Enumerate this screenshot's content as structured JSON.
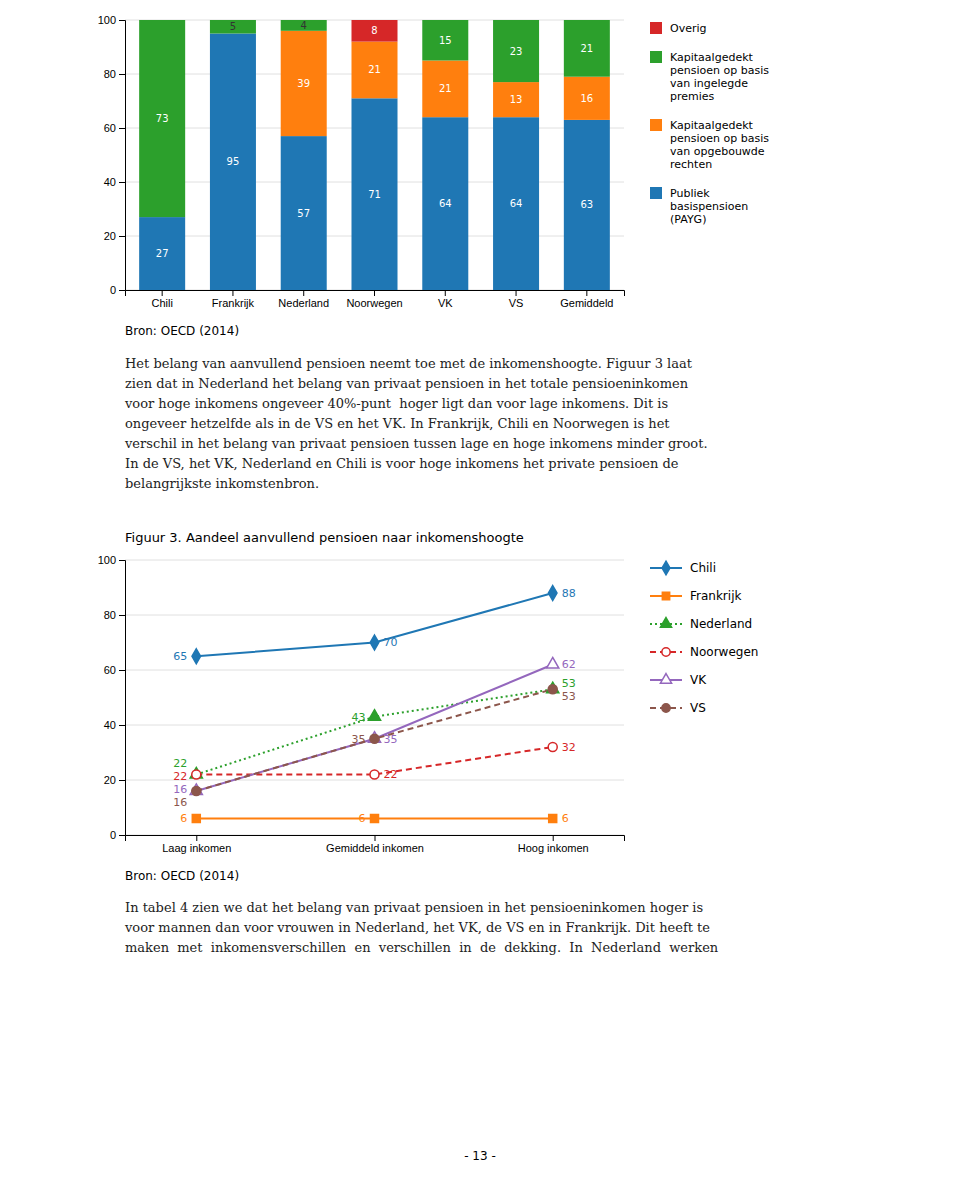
{
  "chart_data": [
    {
      "type": "bar",
      "stacked": true,
      "categories": [
        "Chili",
        "Frankrijk",
        "Nederland",
        "Noorwegen",
        "VK",
        "VS",
        "Gemiddeld"
      ],
      "series": [
        {
          "name": "Publiek\nbasispensioen\n(PAYG)",
          "values": [
            27,
            95,
            57,
            71,
            64,
            64,
            63
          ]
        },
        {
          "name": "Kapitaalgedekt\npensioen op basis\nvan opgebouwde\nrechten",
          "values": [
            0,
            0,
            39,
            21,
            21,
            13,
            16
          ]
        },
        {
          "name": "Kapitaalgedekt\npensioen op basis\nvan ingelegde\npremies",
          "values": [
            73,
            5,
            4,
            0,
            15,
            23,
            21
          ]
        },
        {
          "name": "Overig",
          "values": [
            0,
            0,
            0,
            8,
            0,
            0,
            0
          ]
        }
      ],
      "ylim": [
        0,
        100
      ],
      "yticks": [
        0,
        20,
        40,
        60,
        80,
        100
      ],
      "grid": true,
      "data_labels": true,
      "legend": "right",
      "annotations": [
        "Bron: OECD (2014)"
      ]
    },
    {
      "type": "line",
      "title": "Figuur 3. Aandeel aanvullend pensioen naar inkomenshoogte",
      "categories": [
        "Laag inkomen",
        "Gemiddeld inkomen",
        "Hoog inkomen"
      ],
      "series": [
        {
          "name": "Chili",
          "values": [
            65,
            70,
            88
          ],
          "marker": "diamond",
          "line_style": "solid"
        },
        {
          "name": "Frankrijk",
          "values": [
            6,
            6,
            6
          ],
          "marker": "square",
          "line_style": "solid"
        },
        {
          "name": "Nederland",
          "values": [
            22,
            43,
            53
          ],
          "marker": "triangle",
          "line_style": "dotted"
        },
        {
          "name": "Noorwegen",
          "values": [
            22,
            22,
            32
          ],
          "marker": "circle-open",
          "line_style": "dashed"
        },
        {
          "name": "VK",
          "values": [
            16,
            35,
            62
          ],
          "marker": "triangle-open",
          "line_style": "solid"
        },
        {
          "name": "VS",
          "values": [
            16,
            35,
            53
          ],
          "marker": "circle",
          "line_style": "dashed"
        }
      ],
      "ylim": [
        0,
        100
      ],
      "yticks": [
        0,
        20,
        40,
        60,
        80,
        100
      ],
      "grid": true,
      "data_labels": true,
      "legend": "right",
      "annotations": [
        "Bron: OECD (2014)"
      ]
    }
  ],
  "paragraphs": [
    "Het belang van aanvullend pensioen neemt toe met de inkomenshoogte. Figuur 3 laat\nzien dat in Nederland het belang van privaat pensioen in het totale pensioeninkomen\nvoor hoge inkomens ongeveer 40%-punt  hoger ligt dan voor lage inkomens. Dit is\nongeveer hetzelfde als in de VS en het VK. In Frankrijk, Chili en Noorwegen is het\nverschil in het belang van privaat pensioen tussen lage en hoge inkomens minder groot.\nIn de VS, het VK, Nederland en Chili is voor hoge inkomens het private pensioen de\nbelangrijkste inkomstenbron.",
    "In tabel 4 zien we dat het belang van privaat pensioen in het pensioeninkomen hoger is\nvoor mannen dan voor vrouwen in Nederland, het VK, de VS en in Frankrijk. Dit heeft te\nmaken  met  inkomensverschillen  en  verschillen  in  de  dekking.  In  Nederland  werken"
  ],
  "page_number": "- 13 -"
}
